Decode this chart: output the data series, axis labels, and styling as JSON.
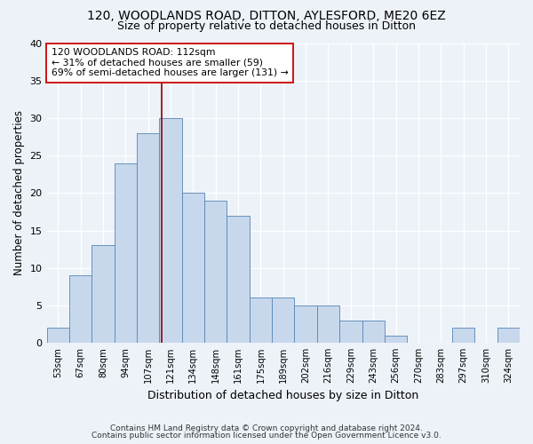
{
  "title1": "120, WOODLANDS ROAD, DITTON, AYLESFORD, ME20 6EZ",
  "title2": "Size of property relative to detached houses in Ditton",
  "xlabel": "Distribution of detached houses by size in Ditton",
  "ylabel": "Number of detached properties",
  "bin_labels": [
    "53sqm",
    "67sqm",
    "80sqm",
    "94sqm",
    "107sqm",
    "121sqm",
    "134sqm",
    "148sqm",
    "161sqm",
    "175sqm",
    "189sqm",
    "202sqm",
    "216sqm",
    "229sqm",
    "243sqm",
    "256sqm",
    "270sqm",
    "283sqm",
    "297sqm",
    "310sqm",
    "324sqm"
  ],
  "bar_values": [
    2,
    9,
    13,
    24,
    28,
    30,
    20,
    19,
    17,
    6,
    6,
    5,
    5,
    3,
    3,
    1,
    0,
    0,
    2,
    0,
    2
  ],
  "bar_color": "#c8d8ec",
  "bar_edge_color": "#5585b5",
  "bar_width": 1.0,
  "vline_x": 4.62,
  "vline_color": "#8b0000",
  "annotation_line1": "120 WOODLANDS ROAD: 112sqm",
  "annotation_line2": "← 31% of detached houses are smaller (59)",
  "annotation_line3": "69% of semi-detached houses are larger (131) →",
  "annotation_box_color": "white",
  "annotation_box_edge": "#cc0000",
  "ylim": [
    0,
    40
  ],
  "yticks": [
    0,
    5,
    10,
    15,
    20,
    25,
    30,
    35,
    40
  ],
  "footer1": "Contains HM Land Registry data © Crown copyright and database right 2024.",
  "footer2": "Contains public sector information licensed under the Open Government Licence v3.0.",
  "bg_color": "#edf2f9",
  "plot_bg_color": "#edf2f9",
  "grid_color": "white"
}
